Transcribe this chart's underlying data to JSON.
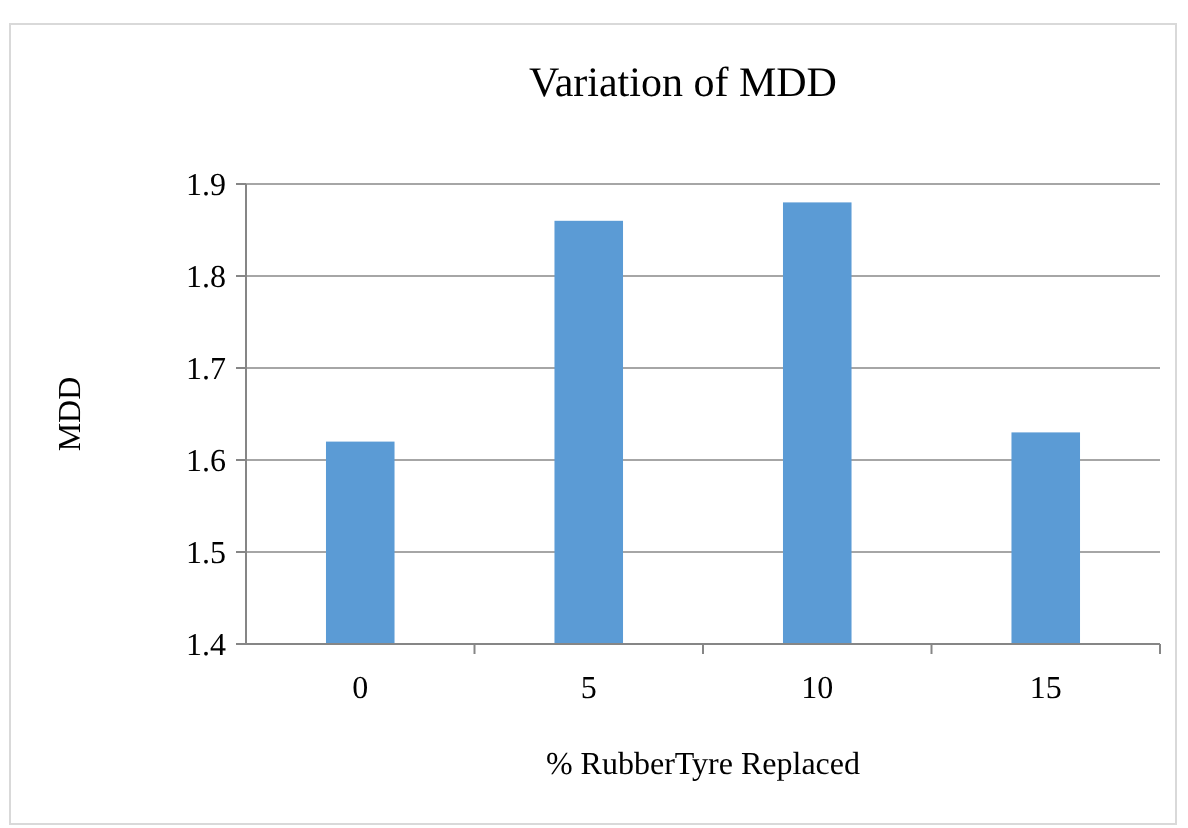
{
  "chart_data": {
    "type": "bar",
    "title": "Variation of MDD",
    "xlabel": "% RubberTyre Replaced",
    "ylabel": "MDD",
    "categories": [
      "0",
      "5",
      "10",
      "15"
    ],
    "values": [
      1.62,
      1.86,
      1.88,
      1.63
    ],
    "color": "#5b9bd5",
    "ylim": [
      1.4,
      1.9
    ],
    "yticks": [
      {
        "value": 1.4,
        "label": "1.4"
      },
      {
        "value": 1.5,
        "label": "1.5"
      },
      {
        "value": 1.6,
        "label": "1.6"
      },
      {
        "value": 1.7,
        "label": "1.7"
      },
      {
        "value": 1.8,
        "label": "1.8"
      },
      {
        "value": 1.9,
        "label": "1.9"
      }
    ],
    "grid": "y"
  }
}
